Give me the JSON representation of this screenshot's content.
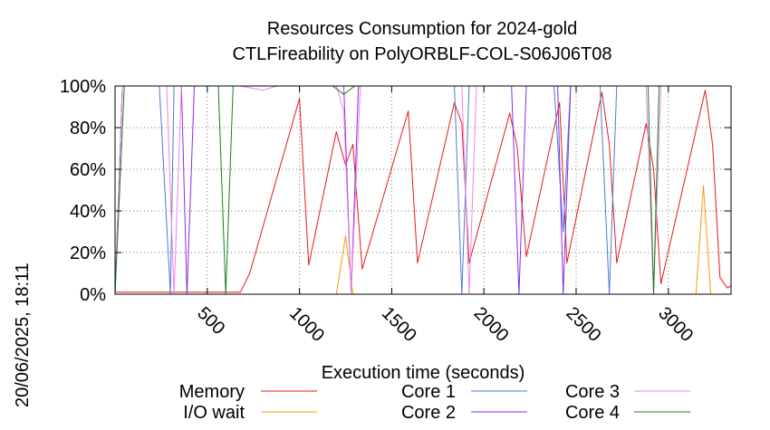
{
  "chart_data": {
    "type": "line",
    "title": "Resources Consumption for 2024-gold",
    "subtitle": "CTLFireability on PolyORBLF-COL-S06J06T08",
    "xlabel": "Execution time (seconds)",
    "ylabel": "",
    "side_label": "20/06/2025, 18:11",
    "xlim": [
      0,
      3340
    ],
    "ylim": [
      0,
      100
    ],
    "x_ticks": [
      500,
      1000,
      1500,
      2000,
      2500,
      3000
    ],
    "y_ticks": [
      0,
      20,
      40,
      60,
      80,
      100
    ],
    "y_tick_labels": [
      "0%",
      "20%",
      "40%",
      "60%",
      "80%",
      "100%"
    ],
    "grid": true,
    "legend_position": "bottom",
    "series": [
      {
        "name": "Memory",
        "color": "#e41a1c",
        "points": [
          [
            0,
            1
          ],
          [
            30,
            1
          ],
          [
            600,
            1
          ],
          [
            680,
            1
          ],
          [
            730,
            10
          ],
          [
            1000,
            94
          ],
          [
            1050,
            14
          ],
          [
            1200,
            78
          ],
          [
            1250,
            62
          ],
          [
            1290,
            72
          ],
          [
            1340,
            12
          ],
          [
            1590,
            88
          ],
          [
            1640,
            15
          ],
          [
            1840,
            92
          ],
          [
            1880,
            82
          ],
          [
            1920,
            15
          ],
          [
            2140,
            87
          ],
          [
            2180,
            71
          ],
          [
            2230,
            18
          ],
          [
            2410,
            92
          ],
          [
            2450,
            15
          ],
          [
            2640,
            97
          ],
          [
            2680,
            72
          ],
          [
            2720,
            15
          ],
          [
            2880,
            82
          ],
          [
            2920,
            60
          ],
          [
            2960,
            5
          ],
          [
            3200,
            98
          ],
          [
            3240,
            72
          ],
          [
            3280,
            8
          ],
          [
            3320,
            3
          ],
          [
            3340,
            4
          ]
        ]
      },
      {
        "name": "I/O wait",
        "color": "#ff9900",
        "points": [
          [
            0,
            0
          ],
          [
            1200,
            0
          ],
          [
            1250,
            28
          ],
          [
            1290,
            0
          ],
          [
            3150,
            0
          ],
          [
            3190,
            52
          ],
          [
            3230,
            0
          ],
          [
            3340,
            0
          ]
        ]
      },
      {
        "name": "Core 1",
        "color": "#4a7bd1",
        "points": [
          [
            0,
            0
          ],
          [
            40,
            100
          ],
          [
            240,
            100
          ],
          [
            300,
            0
          ],
          [
            320,
            100
          ],
          [
            1840,
            100
          ],
          [
            1880,
            0
          ],
          [
            1920,
            100
          ],
          [
            2380,
            100
          ],
          [
            2430,
            30
          ],
          [
            2470,
            100
          ],
          [
            2630,
            100
          ],
          [
            2680,
            0
          ],
          [
            2720,
            100
          ],
          [
            3340,
            100
          ]
        ]
      },
      {
        "name": "Core 2",
        "color": "#8b2be2",
        "points": [
          [
            0,
            0
          ],
          [
            40,
            100
          ],
          [
            360,
            100
          ],
          [
            390,
            0
          ],
          [
            430,
            100
          ],
          [
            1240,
            100
          ],
          [
            1280,
            0
          ],
          [
            1320,
            100
          ],
          [
            2150,
            100
          ],
          [
            2190,
            0
          ],
          [
            2230,
            100
          ],
          [
            2400,
            100
          ],
          [
            2430,
            0
          ],
          [
            2470,
            100
          ],
          [
            3340,
            100
          ]
        ]
      },
      {
        "name": "Core 3",
        "color": "#ee82ee",
        "points": [
          [
            0,
            0
          ],
          [
            40,
            100
          ],
          [
            280,
            100
          ],
          [
            320,
            0
          ],
          [
            360,
            100
          ],
          [
            640,
            100
          ],
          [
            680,
            100
          ],
          [
            800,
            98
          ],
          [
            880,
            100
          ],
          [
            1200,
            100
          ],
          [
            1240,
            88
          ],
          [
            1280,
            0
          ],
          [
            1330,
            100
          ],
          [
            1880,
            100
          ],
          [
            1920,
            0
          ],
          [
            1960,
            100
          ],
          [
            2880,
            100
          ],
          [
            2920,
            0
          ],
          [
            2960,
            100
          ],
          [
            3340,
            100
          ]
        ]
      },
      {
        "name": "Core 4",
        "color": "#1a7f1a",
        "points": [
          [
            0,
            0
          ],
          [
            50,
            100
          ],
          [
            560,
            100
          ],
          [
            600,
            0
          ],
          [
            640,
            100
          ],
          [
            1180,
            100
          ],
          [
            1240,
            96
          ],
          [
            1300,
            100
          ],
          [
            2890,
            100
          ],
          [
            2920,
            0
          ],
          [
            2950,
            100
          ],
          [
            3340,
            100
          ]
        ]
      }
    ]
  }
}
